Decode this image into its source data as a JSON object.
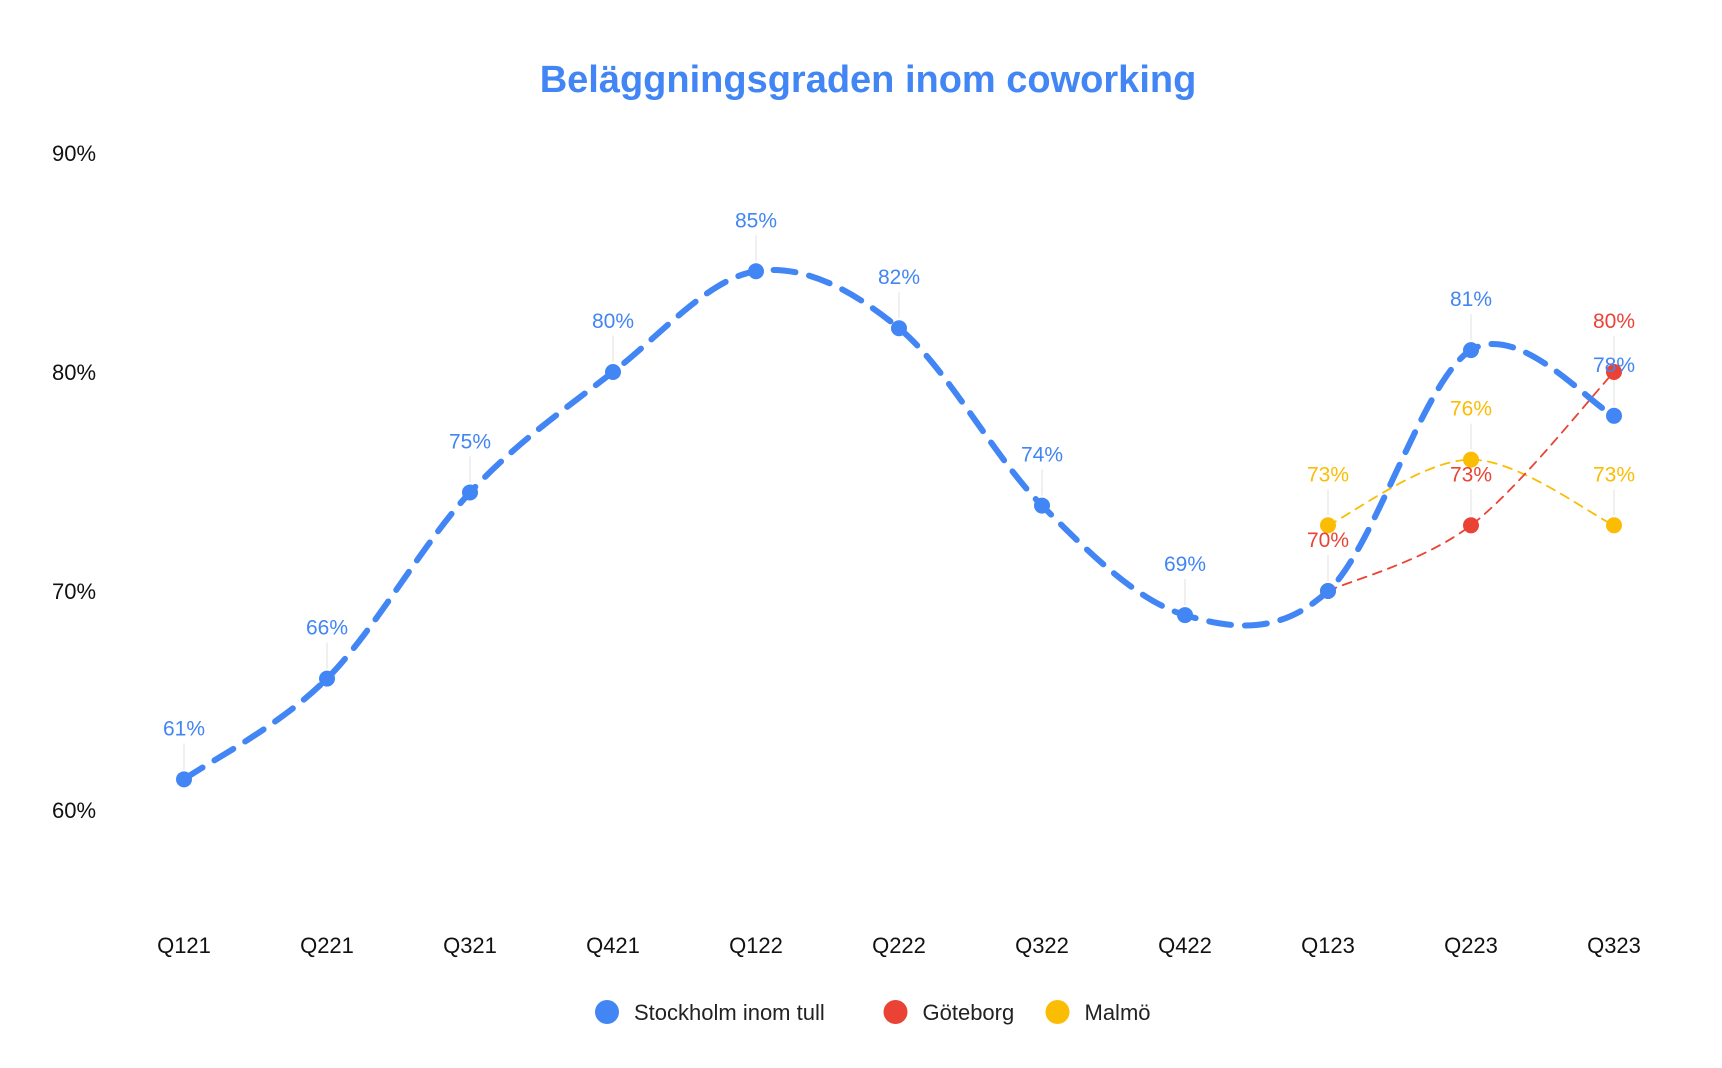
{
  "chart_data": {
    "type": "line",
    "title": "Beläggningsgraden inom coworking",
    "xlabel": "",
    "ylabel": "",
    "categories": [
      "Q121",
      "Q221",
      "Q321",
      "Q421",
      "Q122",
      "Q222",
      "Q322",
      "Q422",
      "Q123",
      "Q223",
      "Q323"
    ],
    "ylim": [
      55,
      90
    ],
    "yticks": [
      60,
      70,
      80,
      90
    ],
    "ytick_labels": [
      "60%",
      "70%",
      "80%",
      "90%"
    ],
    "grid": false,
    "legend_position": "bottom",
    "line_style": "dashed-smooth",
    "series": [
      {
        "name": "Stockholm inom tull",
        "color": "#4285f4",
        "values": [
          61.4,
          66.0,
          74.5,
          80.0,
          84.6,
          82.0,
          73.9,
          68.9,
          70.0,
          81.0,
          78.0
        ],
        "labels": [
          "61%",
          "66%",
          "75%",
          "80%",
          "85%",
          "82%",
          "74%",
          "69%",
          "",
          "81%",
          "78%"
        ]
      },
      {
        "name": "Göteborg",
        "color": "#ea4335",
        "values": [
          null,
          null,
          null,
          null,
          null,
          null,
          null,
          null,
          70.0,
          73.0,
          80.0
        ],
        "labels": [
          "",
          "",
          "",
          "",
          "",
          "",
          "",
          "",
          "70%",
          "73%",
          "80%"
        ]
      },
      {
        "name": "Malmö",
        "color": "#fbbc04",
        "values": [
          null,
          null,
          null,
          null,
          null,
          null,
          null,
          null,
          73.0,
          76.0,
          73.0
        ],
        "labels": [
          "",
          "",
          "",
          "",
          "",
          "",
          "",
          "",
          "73%",
          "76%",
          "73%"
        ]
      }
    ]
  }
}
